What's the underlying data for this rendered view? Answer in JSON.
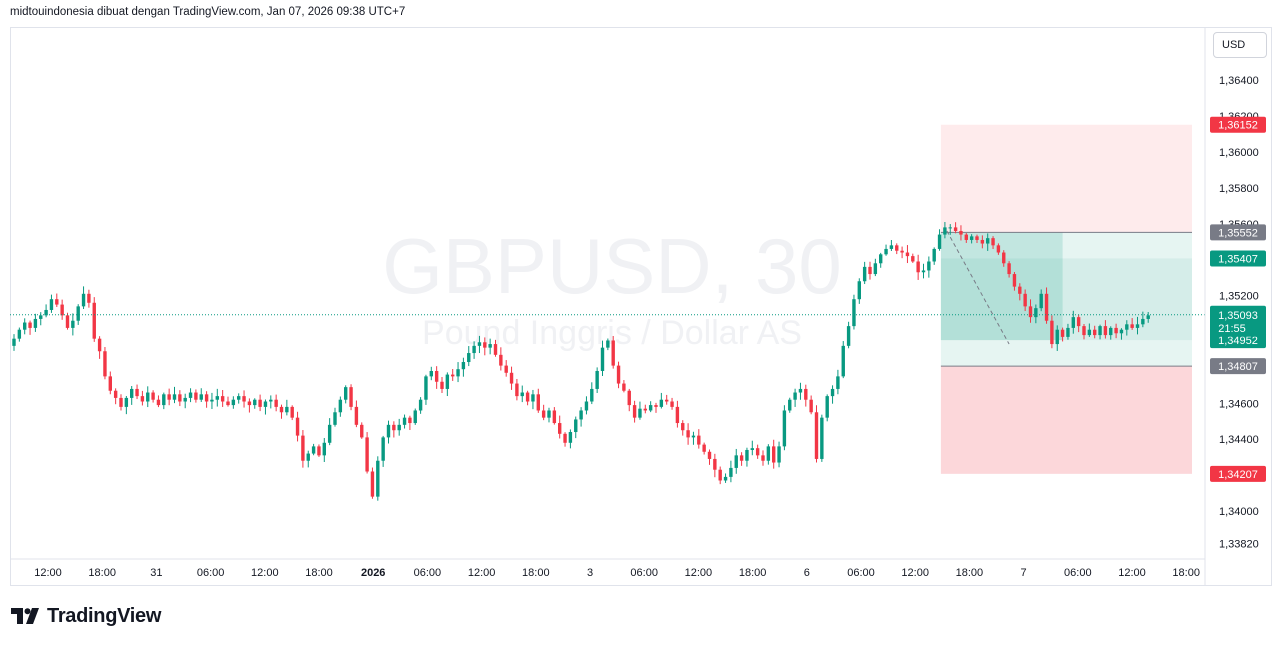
{
  "header": {
    "text": "midtouindonesia dibuat dengan TradingView.com, Jan 07, 2026 09:38 UTC+7"
  },
  "currency": "USD",
  "brand": {
    "name": "TradingView",
    "icon": "tradingview-logo-icon"
  },
  "colors": {
    "up": "#089981",
    "down": "#f23645",
    "target": "#089981",
    "stop": "#f23645",
    "entry": "#787b86",
    "watermark": "#f0f1f4"
  },
  "chart_data": {
    "type": "candlestick",
    "symbol": "GBPUSD",
    "timeframe": "30",
    "description": "Pound Inggris / Dollar AS",
    "y_axis": {
      "ticks": [
        "1,36400",
        "1,36200",
        "1,36000",
        "1,35800",
        "1,35600",
        "1,35200",
        "1,34600",
        "1,34400",
        "1,34000",
        "1,33820"
      ],
      "tick_values": [
        1.364,
        1.362,
        1.36,
        1.358,
        1.356,
        1.352,
        1.346,
        1.344,
        1.34,
        1.3382
      ],
      "range": [
        1.3375,
        1.3665
      ]
    },
    "x_axis": {
      "ticks": [
        "12:00",
        "18:00",
        "31",
        "06:00",
        "12:00",
        "18:00",
        "2026",
        "06:00",
        "12:00",
        "18:00",
        "3",
        "06:00",
        "12:00",
        "18:00",
        "6",
        "06:00",
        "12:00",
        "18:00",
        "7",
        "06:00",
        "12:00",
        "18:00"
      ],
      "bold": [
        false,
        false,
        false,
        false,
        false,
        false,
        true,
        false,
        false,
        false,
        false,
        false,
        false,
        false,
        false,
        false,
        false,
        false,
        false,
        false,
        false,
        false
      ]
    },
    "current_price": {
      "value": 1.35093,
      "label": "1,35093",
      "countdown": "21:55"
    },
    "price_labels": [
      {
        "label": "1,36152",
        "value": 1.36152,
        "kind": "stop"
      },
      {
        "label": "1,35552",
        "value": 1.35552,
        "kind": "entry-line"
      },
      {
        "label": "1,35407",
        "value": 1.35407,
        "kind": "target"
      },
      {
        "label": "1,34952",
        "value": 1.34952,
        "kind": "target"
      },
      {
        "label": "1,34807",
        "value": 1.34807,
        "kind": "entry-line"
      },
      {
        "label": "1,34207",
        "value": 1.34207,
        "kind": "stop"
      }
    ],
    "positions": [
      {
        "type": "short",
        "entry": 1.35552,
        "stop": 1.36152,
        "target": 1.34807,
        "start_bar": 174
      },
      {
        "type": "long",
        "entry": 1.34807,
        "stop": 1.34207,
        "target": 1.35552,
        "start_bar": 174
      }
    ],
    "inner_box": {
      "top": 1.35552,
      "bottom": 1.34952,
      "start_bar": 174,
      "end_bar": 196
    },
    "close_path": [
      1.3496,
      1.3501,
      1.3505,
      1.3502,
      1.3507,
      1.3509,
      1.3512,
      1.3518,
      1.3515,
      1.3509,
      1.3502,
      1.3506,
      1.3514,
      1.3521,
      1.3516,
      1.3496,
      1.3489,
      1.3475,
      1.3467,
      1.3463,
      1.3458,
      1.3463,
      1.3468,
      1.3464,
      1.3461,
      1.3466,
      1.3462,
      1.3459,
      1.3465,
      1.3462,
      1.3465,
      1.3461,
      1.3463,
      1.3466,
      1.3462,
      1.3465,
      1.3461,
      1.3462,
      1.3464,
      1.3461,
      1.3459,
      1.3462,
      1.3464,
      1.3461,
      1.3459,
      1.3462,
      1.3458,
      1.3461,
      1.3462,
      1.3458,
      1.3455,
      1.3458,
      1.3452,
      1.3442,
      1.3428,
      1.3432,
      1.3436,
      1.3431,
      1.3438,
      1.3448,
      1.3455,
      1.3462,
      1.3469,
      1.3458,
      1.3448,
      1.3441,
      1.3422,
      1.3408,
      1.3428,
      1.3441,
      1.3448,
      1.3445,
      1.3448,
      1.3452,
      1.3449,
      1.3456,
      1.3462,
      1.3475,
      1.3478,
      1.3472,
      1.3468,
      1.3476,
      1.3475,
      1.3479,
      1.3483,
      1.3488,
      1.3492,
      1.3494,
      1.3491,
      1.3493,
      1.3487,
      1.3481,
      1.3477,
      1.3471,
      1.3464,
      1.3466,
      1.3461,
      1.3465,
      1.3456,
      1.3452,
      1.3456,
      1.3449,
      1.3443,
      1.3438,
      1.3444,
      1.3451,
      1.3456,
      1.3461,
      1.3468,
      1.3478,
      1.3491,
      1.3495,
      1.3481,
      1.3471,
      1.3467,
      1.3459,
      1.3452,
      1.3457,
      1.3456,
      1.3459,
      1.3458,
      1.3462,
      1.3461,
      1.3458,
      1.3449,
      1.3445,
      1.3441,
      1.3442,
      1.3437,
      1.3433,
      1.3429,
      1.3423,
      1.3417,
      1.3419,
      1.3424,
      1.3431,
      1.3428,
      1.3434,
      1.3435,
      1.3431,
      1.3428,
      1.3436,
      1.3427,
      1.3436,
      1.3456,
      1.3462,
      1.3466,
      1.3468,
      1.3462,
      1.3455,
      1.3429,
      1.3452,
      1.3464,
      1.3468,
      1.3475,
      1.3492,
      1.3503,
      1.3518,
      1.3528,
      1.3536,
      1.3532,
      1.3538,
      1.3543,
      1.3546,
      1.3548,
      1.3545,
      1.3544,
      1.3542,
      1.3539,
      1.3533,
      1.3534,
      1.3539,
      1.3546,
      1.3554,
      1.3558,
      1.3558,
      1.3556,
      1.3554,
      1.3551,
      1.3553,
      1.3551,
      1.3549,
      1.3552,
      1.3548,
      1.3544,
      1.3538,
      1.3532,
      1.3525,
      1.3521,
      1.3514,
      1.3508,
      1.3513,
      1.3521,
      1.3506,
      1.3493,
      1.3501,
      1.3497,
      1.3502,
      1.3508,
      1.3503,
      1.3498,
      1.3501,
      1.3498,
      1.3503,
      1.3498,
      1.3502,
      1.3499,
      1.3501,
      1.3504,
      1.3502,
      1.3504,
      1.3507,
      1.3509
    ]
  }
}
